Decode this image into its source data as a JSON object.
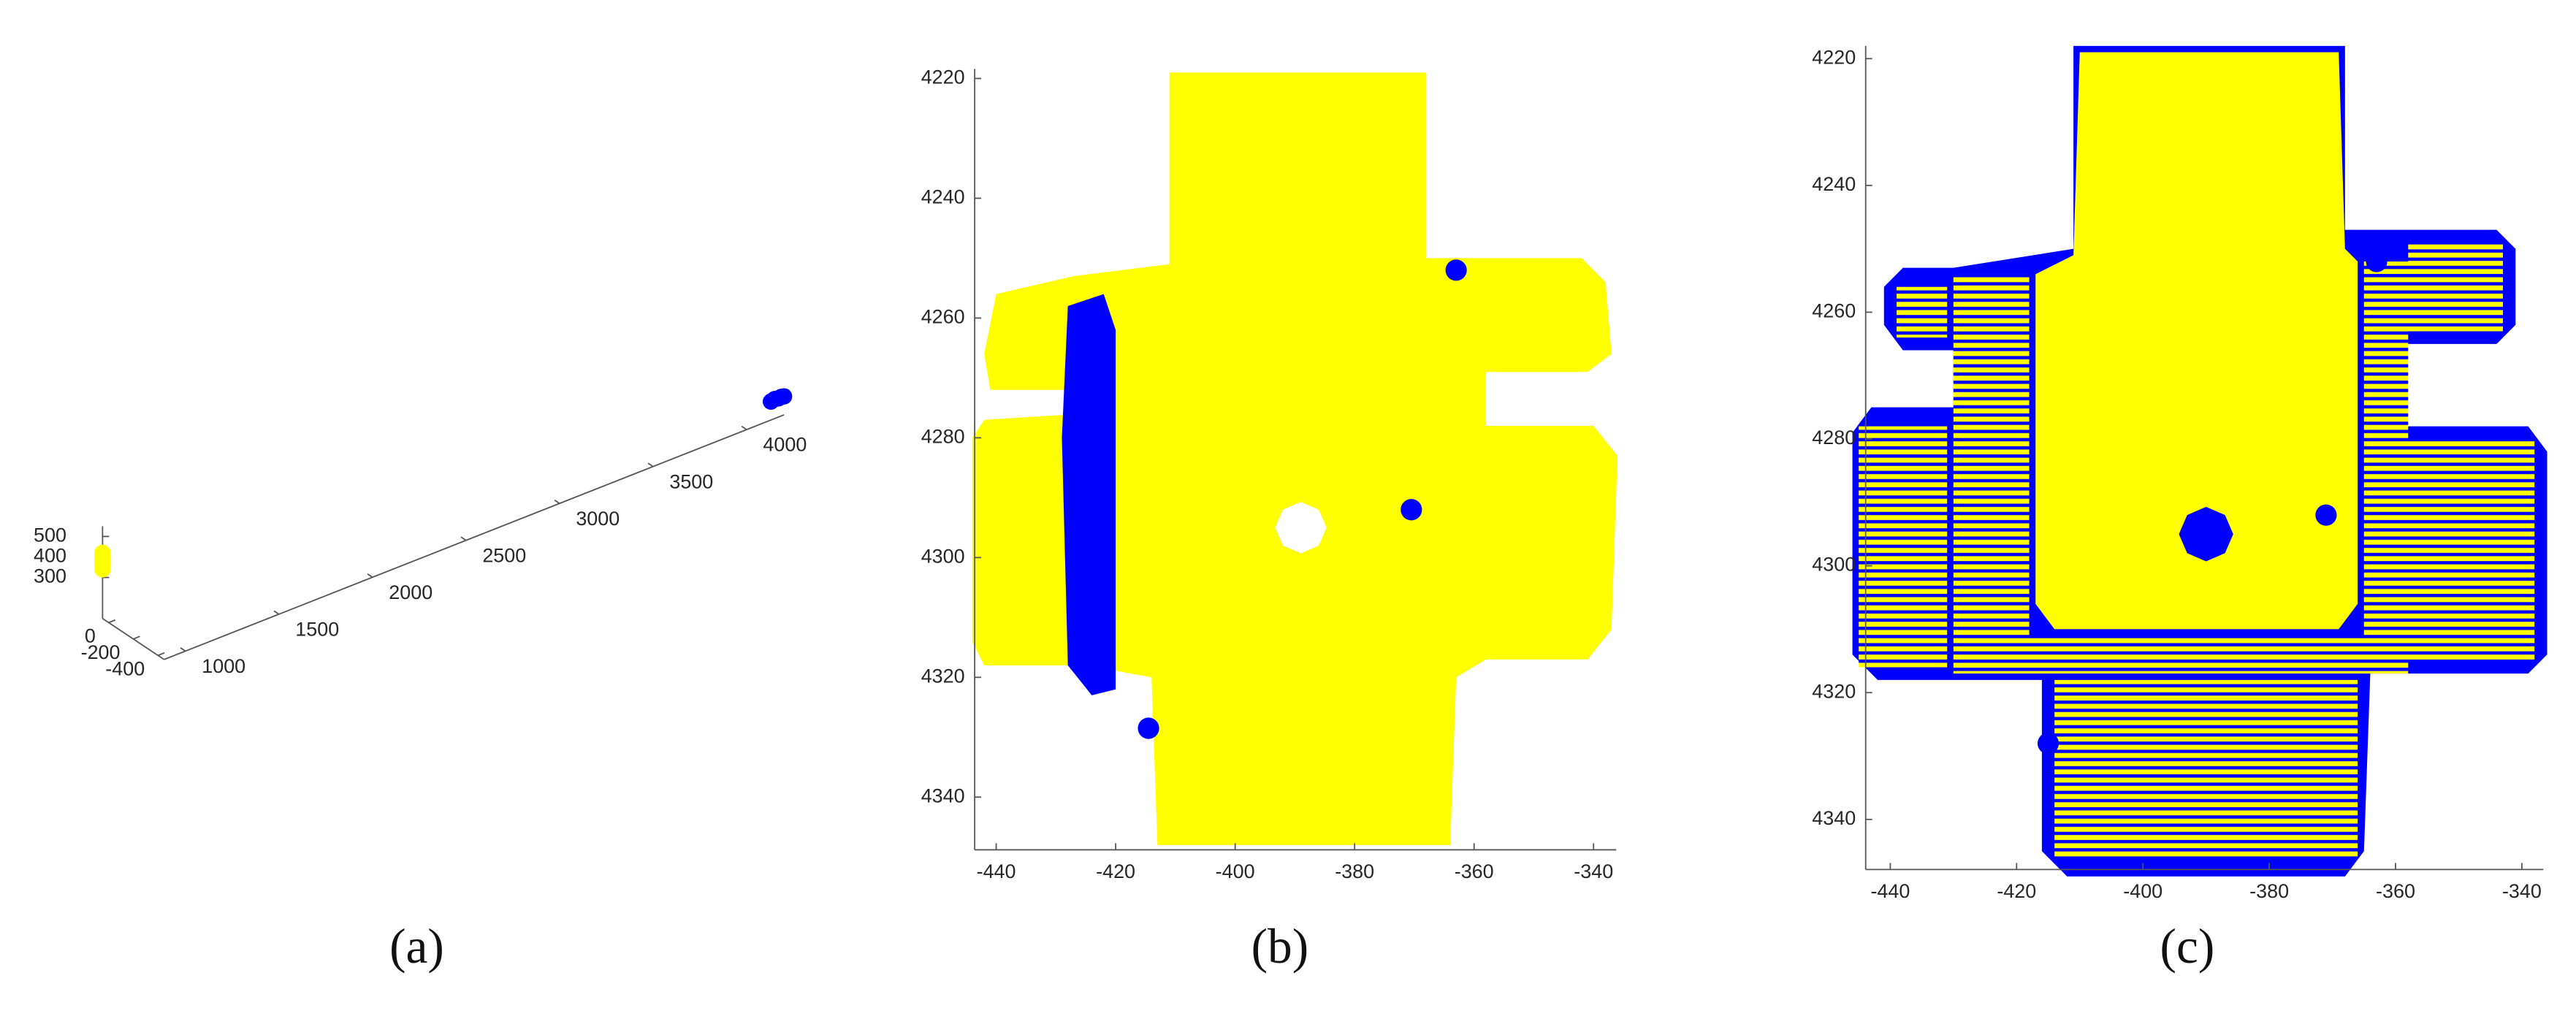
{
  "chart_data": [
    {
      "type": "scatter3d",
      "caption": "(a)",
      "xlim": [
        -450,
        50
      ],
      "ylim": [
        886,
        4200
      ],
      "zlim": [
        100,
        550
      ],
      "xticks": [
        -400,
        -200,
        0
      ],
      "yticks": [
        1000,
        1500,
        2000,
        2500,
        3000,
        3500,
        4000
      ],
      "zticks": [
        300,
        400,
        500
      ],
      "series": [
        {
          "color": "#ffff00",
          "x": [
            50,
            50,
            50,
            50,
            50
          ],
          "y": [
            886,
            886,
            886,
            886,
            886
          ],
          "z": [
            340,
            360,
            380,
            400,
            420
          ]
        },
        {
          "color": "#0000ff",
          "x": [
            -450,
            -450,
            -450,
            -450,
            -450
          ],
          "y": [
            4130,
            4150,
            4170,
            4185,
            4200
          ],
          "z": [
            190,
            195,
            191,
            193,
            190
          ]
        }
      ]
    },
    {
      "type": "scatter",
      "caption": "(b)",
      "ydir": "reverse",
      "xlim": [
        -443.6,
        -336.2
      ],
      "ylim": [
        4218.4,
        4348.8
      ],
      "xticks": [
        -440,
        -420,
        -400,
        -380,
        -360,
        -340
      ],
      "yticks": [
        4220,
        4240,
        4260,
        4280,
        4300,
        4320,
        4340
      ],
      "series": [
        {
          "mode": "area",
          "color": "#ffff00",
          "x": [
            -411,
            -368,
            -368,
            -342,
            -338,
            -337,
            -341,
            -358,
            -358,
            -340,
            -336,
            -337,
            -341,
            -358,
            -363,
            -364,
            -413,
            -414,
            -425,
            -442,
            -444,
            -444,
            -442,
            -426,
            -426,
            -441,
            -442,
            -440,
            -427,
            -411,
            null,
            -384.7,
            -386,
            -389,
            -392,
            -393.3,
            -392,
            -389,
            -386
          ],
          "y": [
            4219,
            4219,
            4250,
            4250,
            4254,
            4266,
            4269,
            4269,
            4278,
            4278,
            4283,
            4312,
            4317,
            4317,
            4320,
            4348,
            4348,
            4320,
            4318,
            4318,
            4314,
            4280,
            4277,
            4276,
            4272,
            4272,
            4266,
            4256,
            4253,
            4251,
            null,
            4295,
            4298,
            4299.3,
            4298,
            4295,
            4292,
            4290.7,
            4292
          ]
        },
        {
          "mode": "area",
          "color": "#0000ff",
          "x": [
            -428,
            -422,
            -420,
            -420,
            -424,
            -428,
            -429
          ],
          "y": [
            4258,
            4256,
            4262,
            4322,
            4323,
            4318,
            4280
          ]
        },
        {
          "mode": "markers",
          "color": "#0000ff",
          "x": [
            -370.5,
            -363,
            -414.5
          ],
          "y": [
            4292,
            4252,
            4328.5
          ]
        }
      ]
    },
    {
      "type": "scatter",
      "caption": "(c)",
      "ydir": "reverse",
      "xlim": [
        -443.9,
        -336.6
      ],
      "ylim": [
        4218,
        4347.9
      ],
      "xticks": [
        -440,
        -420,
        -400,
        -380,
        -360,
        -340
      ],
      "yticks": [
        4220,
        4240,
        4260,
        4280,
        4300,
        4320,
        4340
      ],
      "series": [
        {
          "mode": "area",
          "color": "#0000ff",
          "x": [
            -411,
            -368,
            -368,
            -344,
            -341,
            -341,
            -344,
            -360,
            -360,
            -339,
            -336,
            -336,
            -339,
            -364,
            -365,
            -368,
            -412,
            -416,
            -416,
            -442,
            -446,
            -446,
            -443,
            -430,
            -430,
            -438,
            -441,
            -441,
            -438,
            -430,
            -411
          ],
          "y": [
            4218,
            4218,
            4247,
            4247,
            4250,
            4262,
            4265,
            4265,
            4278,
            4278,
            4282,
            4314,
            4317,
            4317,
            4345,
            4349,
            4349,
            4345,
            4318,
            4318,
            4314,
            4279,
            4275,
            4275,
            4266,
            4266,
            4262,
            4256,
            4253,
            4253,
            4250
          ]
        },
        {
          "mode": "area",
          "color": "#ffff00",
          "pattern": "stripes",
          "x": [
            -445,
            -431,
            -431,
            -445,
            null,
            -358,
            -338,
            -338,
            -358,
            null,
            -414,
            -366,
            -366,
            -414,
            null,
            -358,
            -343,
            -343,
            -358,
            null,
            -439,
            -431,
            -431,
            -439,
            null,
            -430,
            -418,
            -418,
            -430,
            null,
            -365,
            -358,
            -358,
            -365,
            null,
            -418,
            -365,
            -365,
            -418
          ],
          "y": [
            4278,
            4278,
            4316,
            4316,
            null,
            4280,
            4280,
            4315,
            4315,
            null,
            4318,
            4318,
            4346,
            4346,
            null,
            4249,
            4249,
            4263,
            4263,
            null,
            4256,
            4256,
            4264,
            4264,
            null,
            4254,
            4254,
            4317,
            4317,
            null,
            4252,
            4252,
            4317,
            4317,
            null,
            4311,
            4311,
            4317,
            4317
          ]
        },
        {
          "mode": "area",
          "color": "#ffff00",
          "x": [
            -410,
            -369,
            -368,
            -366,
            -366,
            -369,
            -414,
            -417,
            -417,
            -411,
            null,
            -385.7,
            -387,
            -390,
            -393,
            -394.3,
            -393,
            -390,
            -387
          ],
          "y": [
            4219,
            4219,
            4250,
            4252,
            4306,
            4310,
            4310,
            4306,
            4254,
            4251,
            null,
            4295,
            4298,
            4299.3,
            4298,
            4295,
            4292,
            4290.7,
            4292
          ]
        },
        {
          "mode": "markers",
          "color": "#0000ff",
          "x": [
            -371,
            -363,
            -415
          ],
          "y": [
            4292,
            4252,
            4328
          ]
        }
      ]
    }
  ]
}
